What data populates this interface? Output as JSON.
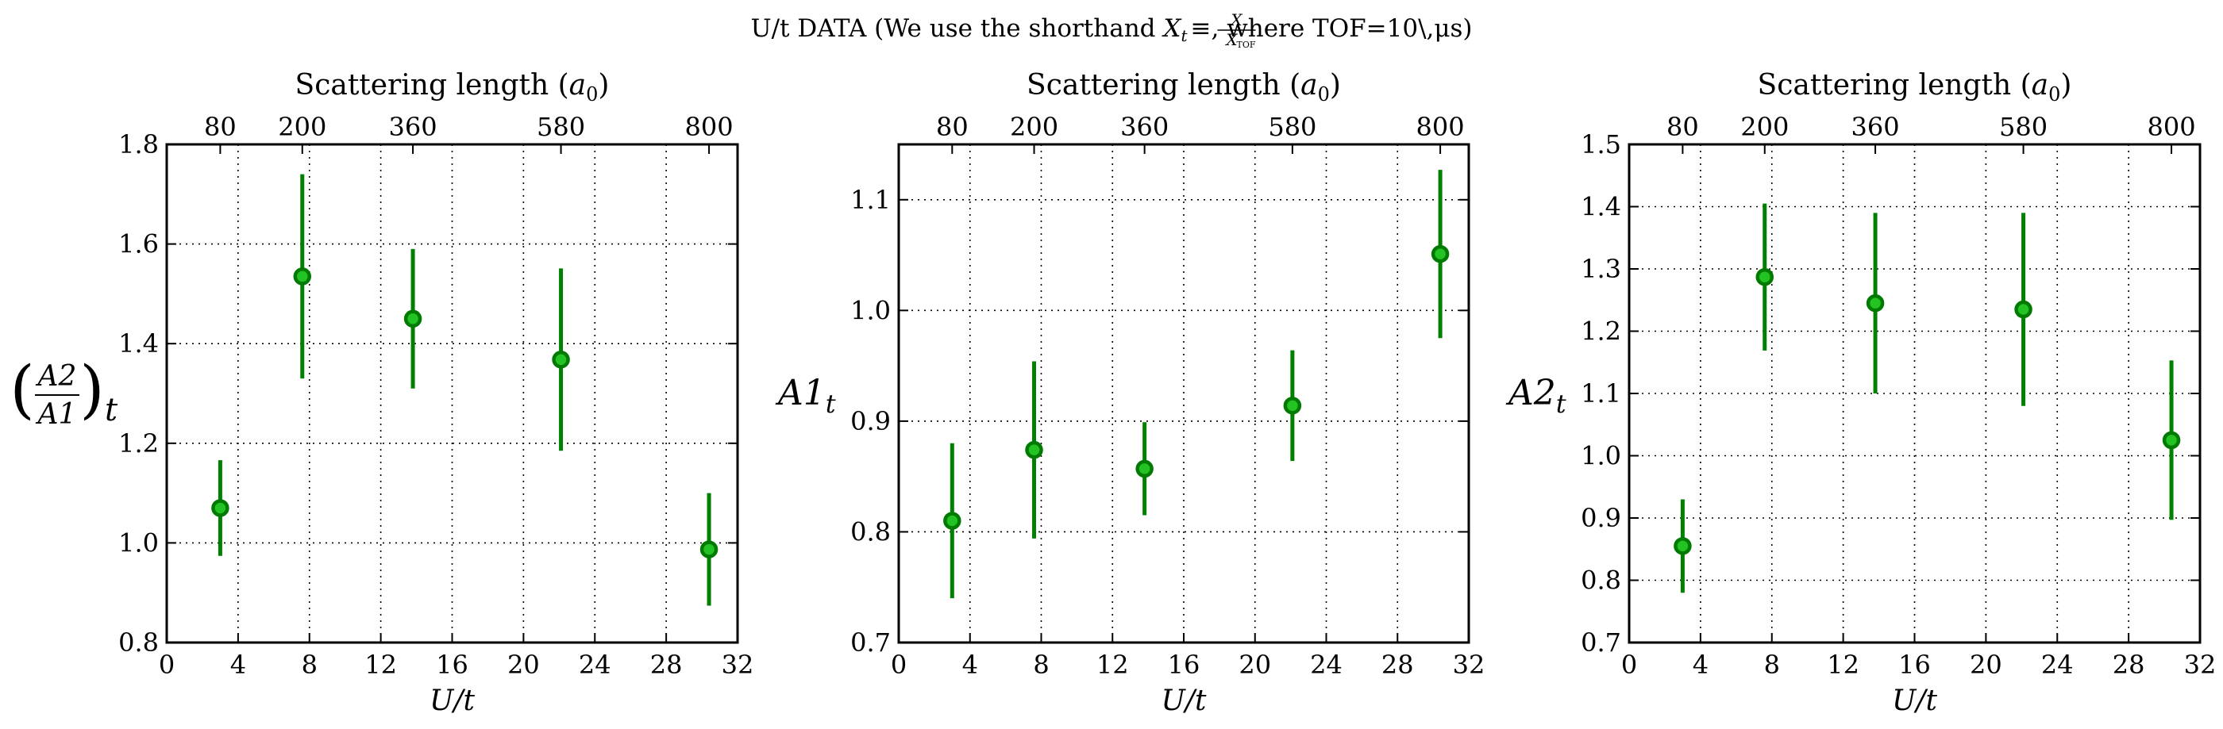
{
  "figure": {
    "title_prefix": "U/t DATA  (We use the shorthand ",
    "title_math_lhs": "X",
    "title_math_sub": "t",
    "title_math_eq": "≡",
    "title_frac_num": "X",
    "title_frac_den": "X",
    "title_frac_den_sub": "TOF",
    "title_suffix": ", where TOF=10\\,μs)",
    "marker_color": "#23c323",
    "errorbar_color": "#008000"
  },
  "chart_data": [
    {
      "type": "scatter",
      "xlabel": "U/t",
      "ylabel_num": "A2",
      "ylabel_den": "A1",
      "ylabel_sub": "t",
      "top_xlabel": "Scattering length (a0)",
      "top_xlabel_text": "Scattering length (",
      "top_xlabel_sym": "a",
      "top_xlabel_sub": "0",
      "top_xlabel_close": ")",
      "xlim": [
        0,
        32
      ],
      "ylim": [
        0.8,
        1.8
      ],
      "xticks": [
        0,
        4,
        8,
        12,
        16,
        20,
        24,
        28,
        32
      ],
      "xtick_labels": [
        "0",
        "4",
        "8",
        "12",
        "16",
        "20",
        "24",
        "28",
        "32"
      ],
      "yticks": [
        0.8,
        1.0,
        1.2,
        1.4,
        1.6,
        1.8
      ],
      "ytick_labels": [
        "0.8",
        "1.0",
        "1.2",
        "1.4",
        "1.6",
        "1.8"
      ],
      "top_ticks": [
        3.0,
        7.6,
        13.8,
        22.1,
        30.4
      ],
      "top_tick_labels": [
        "80",
        "200",
        "360",
        "580",
        "800"
      ],
      "grid": true,
      "x": [
        3.0,
        7.6,
        13.8,
        22.1,
        30.4
      ],
      "y": [
        1.07,
        1.535,
        1.45,
        1.368,
        0.987
      ],
      "yerr": [
        0.096,
        0.205,
        0.14,
        0.183,
        0.113
      ]
    },
    {
      "type": "scatter",
      "xlabel": "U/t",
      "ylabel_main": "A1",
      "ylabel_sub": "t",
      "top_xlabel": "Scattering length (a0)",
      "top_xlabel_text": "Scattering length (",
      "top_xlabel_sym": "a",
      "top_xlabel_sub": "0",
      "top_xlabel_close": ")",
      "xlim": [
        0,
        32
      ],
      "ylim": [
        0.7,
        1.15
      ],
      "xticks": [
        0,
        4,
        8,
        12,
        16,
        20,
        24,
        28,
        32
      ],
      "xtick_labels": [
        "0",
        "4",
        "8",
        "12",
        "16",
        "20",
        "24",
        "28",
        "32"
      ],
      "yticks": [
        0.7,
        0.8,
        0.9,
        1.0,
        1.1
      ],
      "ytick_labels": [
        "0.7",
        "0.8",
        "0.9",
        "1.0",
        "1.1"
      ],
      "top_ticks": [
        3.0,
        7.6,
        13.8,
        22.1,
        30.4
      ],
      "top_tick_labels": [
        "80",
        "200",
        "360",
        "580",
        "800"
      ],
      "grid": true,
      "x": [
        3.0,
        7.6,
        13.8,
        22.1,
        30.4
      ],
      "y": [
        0.81,
        0.874,
        0.857,
        0.914,
        1.051
      ],
      "yerr": [
        0.07,
        0.08,
        0.042,
        0.05,
        0.076
      ]
    },
    {
      "type": "scatter",
      "xlabel": "U/t",
      "ylabel_main": "A2",
      "ylabel_sub": "t",
      "top_xlabel": "Scattering length (a0)",
      "top_xlabel_text": "Scattering length (",
      "top_xlabel_sym": "a",
      "top_xlabel_sub": "0",
      "top_xlabel_close": ")",
      "xlim": [
        0,
        32
      ],
      "ylim": [
        0.7,
        1.5
      ],
      "xticks": [
        0,
        4,
        8,
        12,
        16,
        20,
        24,
        28,
        32
      ],
      "xtick_labels": [
        "0",
        "4",
        "8",
        "12",
        "16",
        "20",
        "24",
        "28",
        "32"
      ],
      "yticks": [
        0.7,
        0.8,
        0.9,
        1.0,
        1.1,
        1.2,
        1.3,
        1.4,
        1.5
      ],
      "ytick_labels": [
        "0.7",
        "0.8",
        "0.9",
        "1.0",
        "1.1",
        "1.2",
        "1.3",
        "1.4",
        "1.5"
      ],
      "top_ticks": [
        3.0,
        7.6,
        13.8,
        22.1,
        30.4
      ],
      "top_tick_labels": [
        "80",
        "200",
        "360",
        "580",
        "800"
      ],
      "grid": true,
      "x": [
        3.0,
        7.6,
        13.8,
        22.1,
        30.4
      ],
      "y": [
        0.855,
        1.287,
        1.245,
        1.235,
        1.025
      ],
      "yerr": [
        0.075,
        0.118,
        0.145,
        0.155,
        0.128
      ]
    }
  ]
}
